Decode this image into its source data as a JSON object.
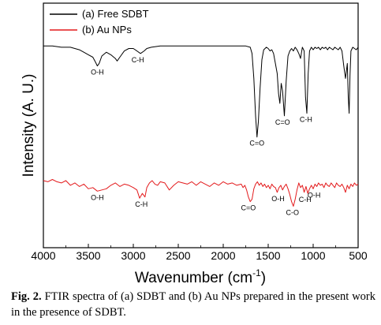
{
  "figure": {
    "caption_label": "Fig. 2.",
    "caption_text": " FTIR spectra of (a) SDBT and (b) Au NPs prepared in the present work in the presence of SDBT."
  },
  "chart_data": {
    "type": "line",
    "title": "",
    "xlabel": "Wavenumber (cm",
    "xlabel_sup": "-1",
    "xlabel_tail": ")",
    "ylabel": "Intensity (A. U.)",
    "xlim": [
      4000,
      500
    ],
    "x_reversed": true,
    "xticks": [
      4000,
      3500,
      3000,
      2500,
      2000,
      1500,
      1000,
      500
    ],
    "y_ticks_shown": false,
    "grid": false,
    "legend_position": "top-left",
    "series": [
      {
        "name": "(a) Free SDBT",
        "color": "#000000",
        "x": [
          4000,
          3900,
          3800,
          3700,
          3650,
          3600,
          3550,
          3500,
          3450,
          3420,
          3400,
          3380,
          3350,
          3300,
          3250,
          3200,
          3180,
          3150,
          3100,
          3050,
          3000,
          2960,
          2920,
          2880,
          2850,
          2800,
          2700,
          2600,
          2500,
          2400,
          2300,
          2200,
          2100,
          2000,
          1900,
          1800,
          1750,
          1700,
          1680,
          1660,
          1640,
          1625,
          1610,
          1590,
          1570,
          1550,
          1520,
          1500,
          1480,
          1460,
          1440,
          1420,
          1400,
          1385,
          1370,
          1355,
          1340,
          1320,
          1300,
          1280,
          1260,
          1240,
          1220,
          1200,
          1180,
          1160,
          1140,
          1120,
          1100,
          1085,
          1070,
          1055,
          1040,
          1020,
          1000,
          980,
          960,
          940,
          920,
          900,
          880,
          860,
          840,
          820,
          800,
          780,
          760,
          740,
          720,
          700,
          680,
          660,
          640,
          620,
          610,
          600,
          590,
          580,
          560,
          540,
          520,
          500
        ],
        "y": [
          0.96,
          0.96,
          0.95,
          0.95,
          0.94,
          0.93,
          0.91,
          0.89,
          0.87,
          0.83,
          0.8,
          0.82,
          0.88,
          0.91,
          0.89,
          0.86,
          0.84,
          0.87,
          0.92,
          0.94,
          0.94,
          0.92,
          0.9,
          0.92,
          0.94,
          0.95,
          0.96,
          0.96,
          0.96,
          0.96,
          0.96,
          0.96,
          0.96,
          0.96,
          0.96,
          0.96,
          0.96,
          0.95,
          0.9,
          0.7,
          0.4,
          0.23,
          0.35,
          0.62,
          0.85,
          0.93,
          0.95,
          0.94,
          0.92,
          0.93,
          0.9,
          0.82,
          0.74,
          0.58,
          0.5,
          0.66,
          0.6,
          0.4,
          0.68,
          0.88,
          0.92,
          0.94,
          0.92,
          0.95,
          0.93,
          0.9,
          0.86,
          0.95,
          0.92,
          0.55,
          0.42,
          0.74,
          0.92,
          0.95,
          0.93,
          0.95,
          0.94,
          0.95,
          0.93,
          0.95,
          0.94,
          0.95,
          0.93,
          0.95,
          0.94,
          0.93,
          0.95,
          0.94,
          0.93,
          0.95,
          0.92,
          0.8,
          0.7,
          0.82,
          0.55,
          0.42,
          0.72,
          0.92,
          0.95,
          0.94,
          0.93,
          0.95
        ]
      },
      {
        "name": "(b) Au NPs",
        "color": "#e31a1c",
        "x": [
          4000,
          3950,
          3900,
          3850,
          3800,
          3750,
          3700,
          3650,
          3600,
          3550,
          3500,
          3450,
          3400,
          3350,
          3300,
          3250,
          3200,
          3150,
          3100,
          3050,
          3000,
          2960,
          2930,
          2900,
          2870,
          2850,
          2820,
          2790,
          2760,
          2730,
          2700,
          2650,
          2600,
          2550,
          2500,
          2450,
          2400,
          2350,
          2300,
          2250,
          2200,
          2150,
          2100,
          2050,
          2000,
          1950,
          1900,
          1850,
          1800,
          1780,
          1760,
          1740,
          1720,
          1700,
          1680,
          1660,
          1640,
          1620,
          1600,
          1580,
          1560,
          1540,
          1520,
          1500,
          1480,
          1460,
          1440,
          1420,
          1400,
          1380,
          1360,
          1340,
          1320,
          1300,
          1280,
          1260,
          1240,
          1220,
          1200,
          1180,
          1160,
          1140,
          1120,
          1100,
          1080,
          1060,
          1040,
          1020,
          1000,
          980,
          960,
          940,
          920,
          900,
          880,
          860,
          840,
          820,
          800,
          780,
          760,
          740,
          720,
          700,
          680,
          660,
          640,
          620,
          600,
          580,
          560,
          540,
          520,
          500
        ],
        "y": [
          0.48,
          0.47,
          0.49,
          0.47,
          0.46,
          0.48,
          0.44,
          0.46,
          0.43,
          0.45,
          0.41,
          0.42,
          0.39,
          0.4,
          0.41,
          0.44,
          0.46,
          0.43,
          0.45,
          0.44,
          0.42,
          0.4,
          0.33,
          0.37,
          0.34,
          0.42,
          0.46,
          0.48,
          0.45,
          0.44,
          0.47,
          0.46,
          0.4,
          0.44,
          0.47,
          0.46,
          0.45,
          0.47,
          0.44,
          0.47,
          0.45,
          0.43,
          0.46,
          0.44,
          0.47,
          0.45,
          0.46,
          0.44,
          0.45,
          0.42,
          0.44,
          0.4,
          0.34,
          0.3,
          0.32,
          0.41,
          0.45,
          0.47,
          0.44,
          0.46,
          0.43,
          0.45,
          0.42,
          0.44,
          0.41,
          0.45,
          0.43,
          0.42,
          0.38,
          0.42,
          0.44,
          0.4,
          0.43,
          0.45,
          0.41,
          0.36,
          0.3,
          0.26,
          0.32,
          0.4,
          0.46,
          0.42,
          0.44,
          0.38,
          0.43,
          0.37,
          0.41,
          0.44,
          0.41,
          0.45,
          0.43,
          0.46,
          0.44,
          0.45,
          0.42,
          0.46,
          0.44,
          0.43,
          0.46,
          0.44,
          0.42,
          0.46,
          0.44,
          0.43,
          0.45,
          0.42,
          0.38,
          0.44,
          0.41,
          0.45,
          0.43,
          0.46,
          0.44,
          0.45
        ]
      }
    ],
    "annotations_a": [
      {
        "text": "O-H",
        "x": 3400
      },
      {
        "text": "C-H",
        "x": 2950
      },
      {
        "text": "C=O",
        "x": 1340
      },
      {
        "text": "C-H",
        "x": 1080
      },
      {
        "text": "C=O",
        "x": 1625
      }
    ],
    "annotations_b": [
      {
        "text": "O-H",
        "x": 3400
      },
      {
        "text": "C-H",
        "x": 2910
      },
      {
        "text": "C=O",
        "x": 1720
      },
      {
        "text": "O-H",
        "x": 1390
      },
      {
        "text": "C-H",
        "x": 1090
      },
      {
        "text": "O-H",
        "x": 990
      },
      {
        "text": "C-O",
        "x": 1230
      }
    ]
  }
}
